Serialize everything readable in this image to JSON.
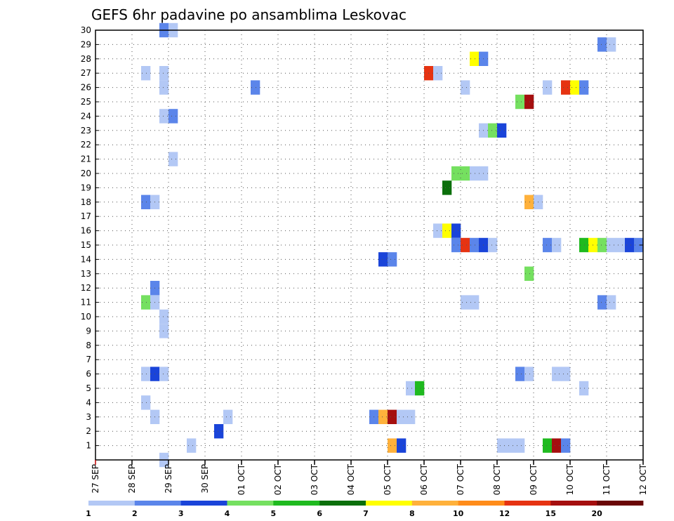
{
  "chart_data": {
    "type": "heatmap",
    "title": "GEFS 6hr padavine po ansamblima Leskovac",
    "xlabel": "",
    "ylabel": "",
    "x_ticks": [
      "27 SEP",
      "28 SEP",
      "29 SEP",
      "30 SEP",
      "01 OCT",
      "02 OCT",
      "03 OCT",
      "04 OCT",
      "05 OCT",
      "06 OCT",
      "07 OCT",
      "08 OCT",
      "09 OCT",
      "10 OCT",
      "11 OCT",
      "12 OCT"
    ],
    "y_ticks": [
      "1",
      "2",
      "3",
      "4",
      "5",
      "6",
      "7",
      "8",
      "9",
      "10",
      "11",
      "12",
      "13",
      "14",
      "15",
      "16",
      "17",
      "18",
      "19",
      "20",
      "21",
      "22",
      "23",
      "24",
      "25",
      "26",
      "27",
      "28",
      "29",
      "30"
    ],
    "time_steps_per_day": 4,
    "ylim": [
      0,
      30
    ],
    "grid": true,
    "legend": {
      "position": "bottom",
      "labels": [
        "1",
        "2",
        "3",
        "4",
        "5",
        "6",
        "7",
        "8",
        "10",
        "12",
        "15",
        "20"
      ],
      "colors": [
        "#b3c8f5",
        "#5b85ea",
        "#1a44d9",
        "#75e060",
        "#1fba1f",
        "#0b6f0b",
        "#ffff00",
        "#ffb13b",
        "#ff8c1a",
        "#e63312",
        "#a50f0f",
        "#6a0707"
      ]
    },
    "cells": [
      {
        "member": 30,
        "step": 7,
        "color": "#5b85ea"
      },
      {
        "member": 30,
        "step": 8,
        "color": "#b3c8f5"
      },
      {
        "member": 29,
        "step": 55,
        "color": "#5b85ea"
      },
      {
        "member": 29,
        "step": 56,
        "color": "#b3c8f5"
      },
      {
        "member": 28,
        "step": 41,
        "color": "#ffff00"
      },
      {
        "member": 28,
        "step": 42,
        "color": "#5b85ea"
      },
      {
        "member": 27,
        "step": 5,
        "color": "#b3c8f5"
      },
      {
        "member": 27,
        "step": 7,
        "color": "#b3c8f5"
      },
      {
        "member": 27,
        "step": 36,
        "color": "#e63312"
      },
      {
        "member": 27,
        "step": 37,
        "color": "#b3c8f5"
      },
      {
        "member": 26,
        "step": 7,
        "color": "#b3c8f5"
      },
      {
        "member": 26,
        "step": 17,
        "color": "#5b85ea"
      },
      {
        "member": 26,
        "step": 40,
        "color": "#b3c8f5"
      },
      {
        "member": 26,
        "step": 49,
        "color": "#b3c8f5"
      },
      {
        "member": 26,
        "step": 51,
        "color": "#e63312"
      },
      {
        "member": 26,
        "step": 52,
        "color": "#ffff00"
      },
      {
        "member": 26,
        "step": 53,
        "color": "#5b85ea"
      },
      {
        "member": 25,
        "step": 46,
        "color": "#75e060"
      },
      {
        "member": 25,
        "step": 47,
        "color": "#a50f0f"
      },
      {
        "member": 24,
        "step": 7,
        "color": "#b3c8f5"
      },
      {
        "member": 24,
        "step": 8,
        "color": "#5b85ea"
      },
      {
        "member": 23,
        "step": 42,
        "color": "#b3c8f5"
      },
      {
        "member": 23,
        "step": 43,
        "color": "#75e060"
      },
      {
        "member": 23,
        "step": 44,
        "color": "#1a44d9"
      },
      {
        "member": 21,
        "step": 8,
        "color": "#b3c8f5"
      },
      {
        "member": 20,
        "step": 39,
        "color": "#75e060"
      },
      {
        "member": 20,
        "step": 40,
        "color": "#75e060"
      },
      {
        "member": 20,
        "step": 41,
        "color": "#b3c8f5"
      },
      {
        "member": 20,
        "step": 42,
        "color": "#b3c8f5"
      },
      {
        "member": 19,
        "step": 38,
        "color": "#0b6f0b"
      },
      {
        "member": 18,
        "step": 5,
        "color": "#5b85ea"
      },
      {
        "member": 18,
        "step": 6,
        "color": "#b3c8f5"
      },
      {
        "member": 18,
        "step": 47,
        "color": "#ffb13b"
      },
      {
        "member": 18,
        "step": 48,
        "color": "#b3c8f5"
      },
      {
        "member": 16,
        "step": 37,
        "color": "#b3c8f5"
      },
      {
        "member": 16,
        "step": 38,
        "color": "#ffff00"
      },
      {
        "member": 16,
        "step": 39,
        "color": "#1a44d9"
      },
      {
        "member": 15,
        "step": 39,
        "color": "#5b85ea"
      },
      {
        "member": 15,
        "step": 40,
        "color": "#e63312"
      },
      {
        "member": 15,
        "step": 41,
        "color": "#5b85ea"
      },
      {
        "member": 15,
        "step": 42,
        "color": "#1a44d9"
      },
      {
        "member": 15,
        "step": 43,
        "color": "#b3c8f5"
      },
      {
        "member": 15,
        "step": 49,
        "color": "#5b85ea"
      },
      {
        "member": 15,
        "step": 50,
        "color": "#b3c8f5"
      },
      {
        "member": 15,
        "step": 53,
        "color": "#1fba1f"
      },
      {
        "member": 15,
        "step": 54,
        "color": "#ffff00"
      },
      {
        "member": 15,
        "step": 55,
        "color": "#75e060"
      },
      {
        "member": 15,
        "step": 56,
        "color": "#b3c8f5"
      },
      {
        "member": 15,
        "step": 57,
        "color": "#b3c8f5"
      },
      {
        "member": 15,
        "step": 58,
        "color": "#1a44d9"
      },
      {
        "member": 15,
        "step": 59,
        "color": "#5b85ea"
      },
      {
        "member": 14,
        "step": 31,
        "color": "#1a44d9"
      },
      {
        "member": 14,
        "step": 32,
        "color": "#5b85ea"
      },
      {
        "member": 13,
        "step": 47,
        "color": "#75e060"
      },
      {
        "member": 12,
        "step": 6,
        "color": "#5b85ea"
      },
      {
        "member": 11,
        "step": 5,
        "color": "#75e060"
      },
      {
        "member": 11,
        "step": 6,
        "color": "#b3c8f5"
      },
      {
        "member": 11,
        "step": 40,
        "color": "#b3c8f5"
      },
      {
        "member": 11,
        "step": 41,
        "color": "#b3c8f5"
      },
      {
        "member": 11,
        "step": 55,
        "color": "#5b85ea"
      },
      {
        "member": 11,
        "step": 56,
        "color": "#b3c8f5"
      },
      {
        "member": 10,
        "step": 7,
        "color": "#b3c8f5"
      },
      {
        "member": 9,
        "step": 7,
        "color": "#b3c8f5"
      },
      {
        "member": 6,
        "step": 5,
        "color": "#b3c8f5"
      },
      {
        "member": 6,
        "step": 6,
        "color": "#1a44d9"
      },
      {
        "member": 6,
        "step": 7,
        "color": "#b3c8f5"
      },
      {
        "member": 6,
        "step": 46,
        "color": "#5b85ea"
      },
      {
        "member": 6,
        "step": 47,
        "color": "#b3c8f5"
      },
      {
        "member": 6,
        "step": 50,
        "color": "#b3c8f5"
      },
      {
        "member": 6,
        "step": 51,
        "color": "#b3c8f5"
      },
      {
        "member": 5,
        "step": 34,
        "color": "#b3c8f5"
      },
      {
        "member": 5,
        "step": 35,
        "color": "#1fba1f"
      },
      {
        "member": 5,
        "step": 53,
        "color": "#b3c8f5"
      },
      {
        "member": 4,
        "step": 5,
        "color": "#b3c8f5"
      },
      {
        "member": 3,
        "step": 6,
        "color": "#b3c8f5"
      },
      {
        "member": 3,
        "step": 14,
        "color": "#b3c8f5"
      },
      {
        "member": 3,
        "step": 30,
        "color": "#5b85ea"
      },
      {
        "member": 3,
        "step": 31,
        "color": "#ffb13b"
      },
      {
        "member": 3,
        "step": 32,
        "color": "#a50f0f"
      },
      {
        "member": 3,
        "step": 33,
        "color": "#b3c8f5"
      },
      {
        "member": 3,
        "step": 34,
        "color": "#b3c8f5"
      },
      {
        "member": 2,
        "step": 13,
        "color": "#1a44d9"
      },
      {
        "member": 1,
        "step": 10,
        "color": "#b3c8f5"
      },
      {
        "member": 1,
        "step": 32,
        "color": "#ffb13b"
      },
      {
        "member": 1,
        "step": 33,
        "color": "#1a44d9"
      },
      {
        "member": 1,
        "step": 44,
        "color": "#b3c8f5"
      },
      {
        "member": 1,
        "step": 45,
        "color": "#b3c8f5"
      },
      {
        "member": 1,
        "step": 46,
        "color": "#b3c8f5"
      },
      {
        "member": 1,
        "step": 49,
        "color": "#1fba1f"
      },
      {
        "member": 1,
        "step": 50,
        "color": "#a50f0f"
      },
      {
        "member": 1,
        "step": 51,
        "color": "#5b85ea"
      },
      {
        "member": 0,
        "step": 7,
        "color": "#b3c8f5"
      }
    ]
  }
}
